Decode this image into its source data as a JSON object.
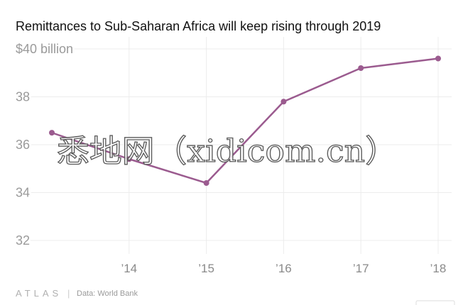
{
  "chart_data": {
    "type": "line",
    "title": "Remittances to Sub-Saharan Africa will keep rising through 2019",
    "x": [
      2013,
      2014,
      2015,
      2016,
      2017,
      2018
    ],
    "x_tick_values": [
      2014,
      2015,
      2016,
      2017,
      2018
    ],
    "x_tick_labels": [
      "’14",
      "’15",
      "’16",
      "’17",
      "’18"
    ],
    "y_tick_values": [
      40,
      38,
      36,
      34,
      32
    ],
    "y_tick_labels": [
      "$40 billion",
      "38",
      "36",
      "34",
      "32"
    ],
    "series": [
      {
        "values": [
          36.5,
          35.4,
          34.4,
          37.8,
          39.2,
          39.6
        ],
        "color": "#9b5b8f"
      }
    ],
    "xlim": [
      2013,
      2018
    ],
    "ylim": [
      32,
      40
    ],
    "grid": true,
    "legend": "none"
  },
  "footer": {
    "logo": "ATLAS",
    "separator": "|",
    "source": "Data: World Bank"
  },
  "watermark": "悉地网（xidicom.cn）"
}
